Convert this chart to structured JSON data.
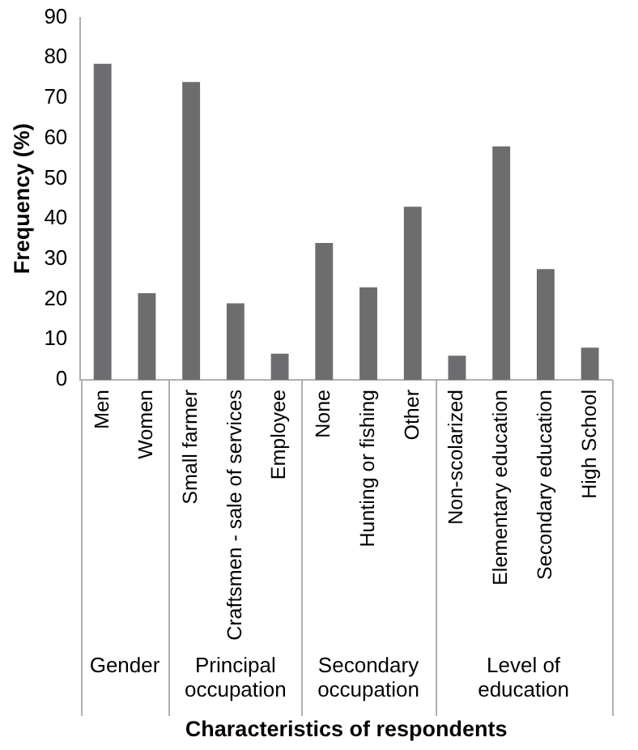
{
  "chart_data": {
    "type": "bar",
    "categories": [
      "Men",
      "Women",
      "Small farmer",
      "Craftsmen - sale of services",
      "Employee",
      "None",
      "Hunting or fishing",
      "Other",
      "Non-scolarized",
      "Elementary education",
      "Secondary education",
      "High School"
    ],
    "values": [
      78.5,
      21.5,
      74,
      19,
      6.5,
      34,
      23,
      43,
      6,
      58,
      27.5,
      8
    ],
    "color": "#6d6d70",
    "xlabel": "Characteristics of respondents",
    "ylabel": "Frequency (%)",
    "ylim": [
      0,
      90
    ],
    "yticks": [
      0,
      10,
      20,
      30,
      40,
      50,
      60,
      70,
      80,
      90
    ],
    "annotations": [
      "Gender",
      "Principal occupation",
      "Secondary occupation",
      "Level of education"
    ],
    "grid": false,
    "legend": false
  }
}
